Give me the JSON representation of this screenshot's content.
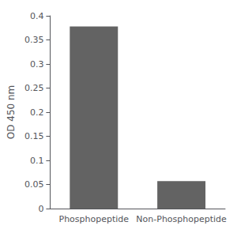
{
  "chart_data": {
    "type": "bar",
    "categories": [
      "Phosphopeptide",
      "Non-Phosphopeptide"
    ],
    "values": [
      0.378,
      0.057
    ],
    "color": "#636363",
    "ylabel": "OD 450 nm",
    "ylim": [
      0,
      0.4
    ],
    "yticks": [
      0,
      0.05,
      0.1,
      0.15,
      0.2,
      0.25,
      0.3,
      0.35,
      0.4
    ],
    "grid": false
  }
}
